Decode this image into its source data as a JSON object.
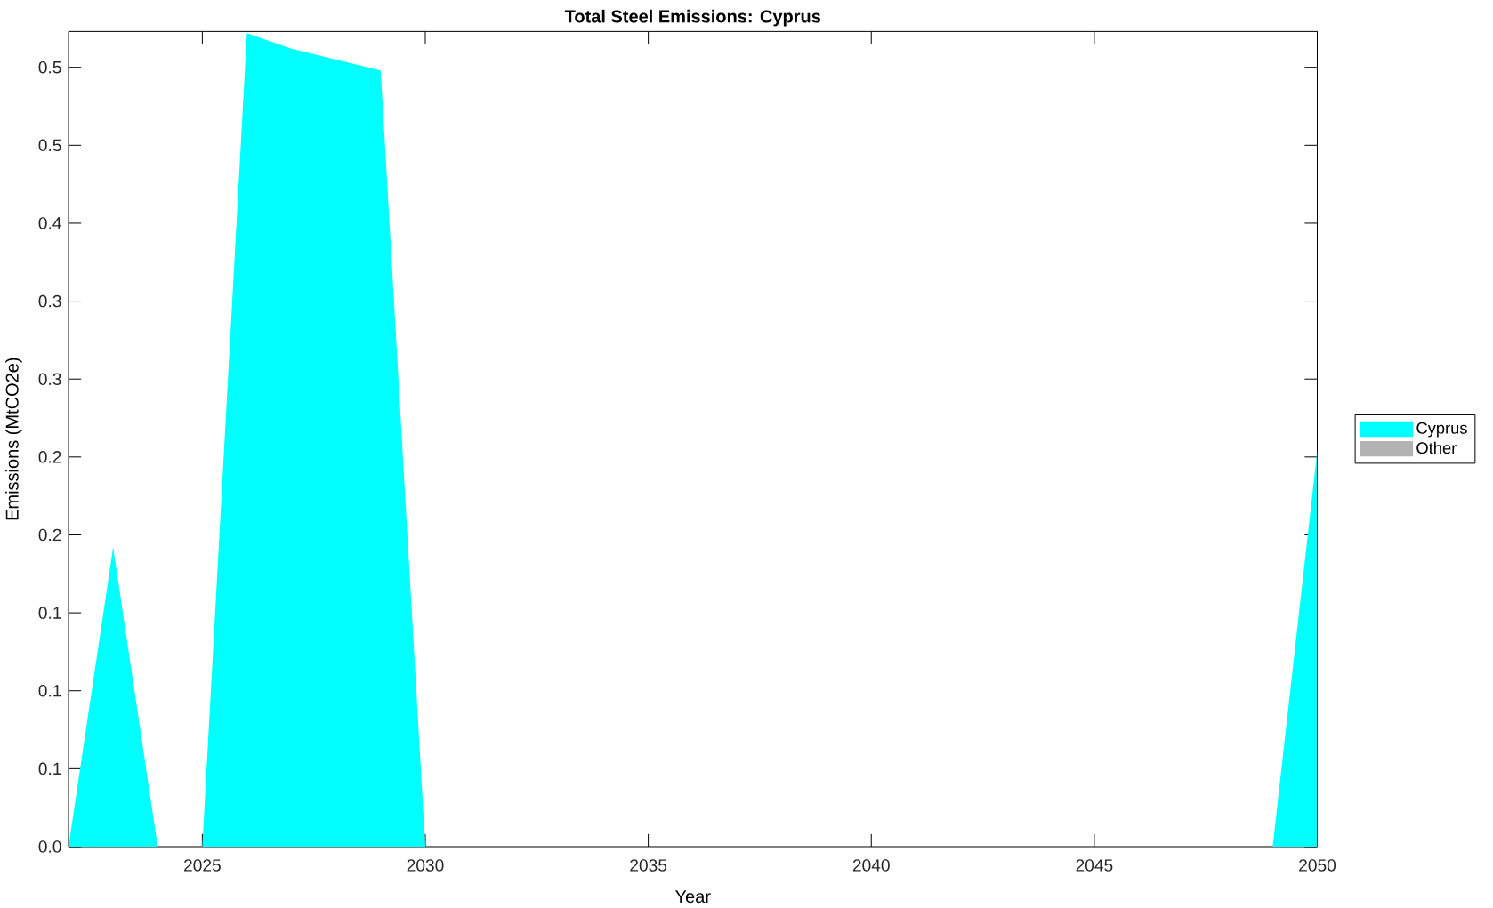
{
  "chart_data": {
    "type": "area",
    "title": "Total Steel Emissions: Cyprus",
    "xlabel": "Year",
    "ylabel": "Emissions (MtCO2e)",
    "x": [
      2022,
      2023,
      2024,
      2025,
      2026,
      2027,
      2028,
      2029,
      2030,
      2031,
      2032,
      2033,
      2034,
      2035,
      2036,
      2037,
      2038,
      2039,
      2040,
      2041,
      2042,
      2043,
      2044,
      2045,
      2046,
      2047,
      2048,
      2049,
      2050
    ],
    "series": [
      {
        "name": "Cyprus",
        "color": "#00ffff",
        "values": [
          0,
          0.192,
          0,
          0,
          0.522,
          0.512,
          0.505,
          0.498,
          0,
          0,
          0,
          0,
          0,
          0,
          0,
          0,
          0,
          0,
          0,
          0,
          0,
          0,
          0,
          0,
          0,
          0,
          0,
          0,
          0.254
        ]
      },
      {
        "name": "Other",
        "color": "#b3b3b3",
        "values": [
          null,
          null,
          null,
          null,
          null,
          null,
          null,
          null,
          null,
          null,
          null,
          null,
          null,
          null,
          null,
          null,
          null,
          null,
          null,
          null,
          null,
          null,
          null,
          null,
          null,
          null,
          null,
          null,
          null
        ]
      }
    ],
    "xlim": [
      2022,
      2050
    ],
    "xticks": [
      2025,
      2030,
      2035,
      2040,
      2045,
      2050
    ],
    "ylim": [
      0,
      0.523
    ],
    "yticks": [
      {
        "value": 0,
        "label": "0.0"
      },
      {
        "value": 0.05,
        "label": "0.1"
      },
      0.1,
      {
        "value": 0.15,
        "label": "0.1"
      },
      0.2,
      {
        "value": 0.25,
        "label": "0.2"
      },
      0.3,
      {
        "value": 0.35,
        "label": "0.3"
      },
      0.4,
      {
        "value": 0.45,
        "label": "0.5"
      },
      0.5
    ],
    "legend": "right"
  }
}
